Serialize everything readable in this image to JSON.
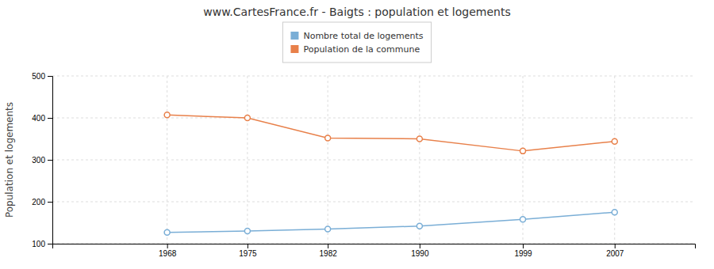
{
  "chart_data": {
    "type": "line",
    "title": "www.CartesFrance.fr - Baigts : population et logements",
    "y_label": "Population et logements",
    "x": [
      1968,
      1975,
      1982,
      1990,
      1999,
      2007
    ],
    "series": [
      {
        "name": "Nombre total de logements",
        "color": "#7aaed6",
        "marker": "circle",
        "values": [
          127,
          130,
          135,
          142,
          158,
          175
        ]
      },
      {
        "name": "Population de la commune",
        "color": "#e8804a",
        "marker": "circle",
        "values": [
          407,
          400,
          352,
          350,
          321,
          344
        ]
      }
    ],
    "xlim": [
      1958,
      2014
    ],
    "xticks": [
      1968,
      1975,
      1982,
      1990,
      1999,
      2007
    ],
    "ylim": [
      100,
      500
    ],
    "yticks": [
      100,
      200,
      300,
      400,
      500
    ],
    "grid": true,
    "legend": "top"
  }
}
